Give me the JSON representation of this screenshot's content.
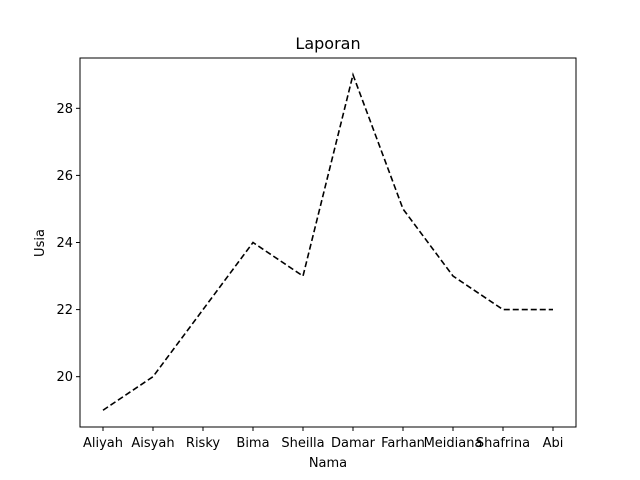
{
  "chart_data": {
    "type": "line",
    "title": "Laporan",
    "xlabel": "Nama",
    "ylabel": "Usia",
    "categories": [
      "Aliyah",
      "Aisyah",
      "Risky",
      "Bima",
      "Sheilla",
      "Damar",
      "Farhan",
      "Meidiana",
      "Shafrina",
      "Abi"
    ],
    "series": [
      {
        "values": [
          19,
          20,
          22,
          24,
          23,
          29,
          25,
          23,
          22,
          22
        ],
        "color": "#000000",
        "line_style": "dashed"
      }
    ],
    "yticks": [
      20,
      22,
      24,
      26,
      28
    ],
    "ylim": [
      18.5,
      29.5
    ],
    "grid": false,
    "legend": "none"
  }
}
